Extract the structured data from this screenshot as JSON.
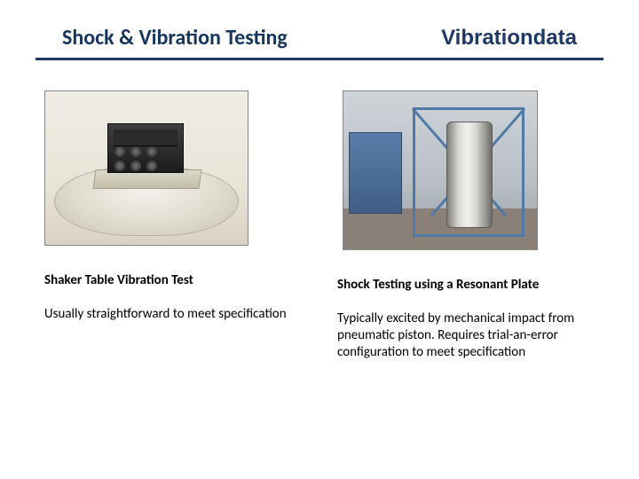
{
  "header": {
    "title": "Shock & Vibration Testing",
    "brand": "Vibrationdata",
    "title_color": "#17365d",
    "brand_color": "#1f3864",
    "rule_color": "#1f3864"
  },
  "left": {
    "caption": "Shaker Table Vibration Test",
    "description": "Usually straightforward to meet specification",
    "image_alt": "Electronics unit mounted on electrodynamic shaker table"
  },
  "right": {
    "caption": "Shock Testing using a Resonant Plate",
    "description": "Typically excited by mechanical impact from pneumatic piston.  Requires trial-an-error configuration to meet specification",
    "image_alt": "Vertical resonant plate in blue test frame with pneumatic actuator"
  },
  "text_color": "#000000",
  "background_color": "#ffffff"
}
